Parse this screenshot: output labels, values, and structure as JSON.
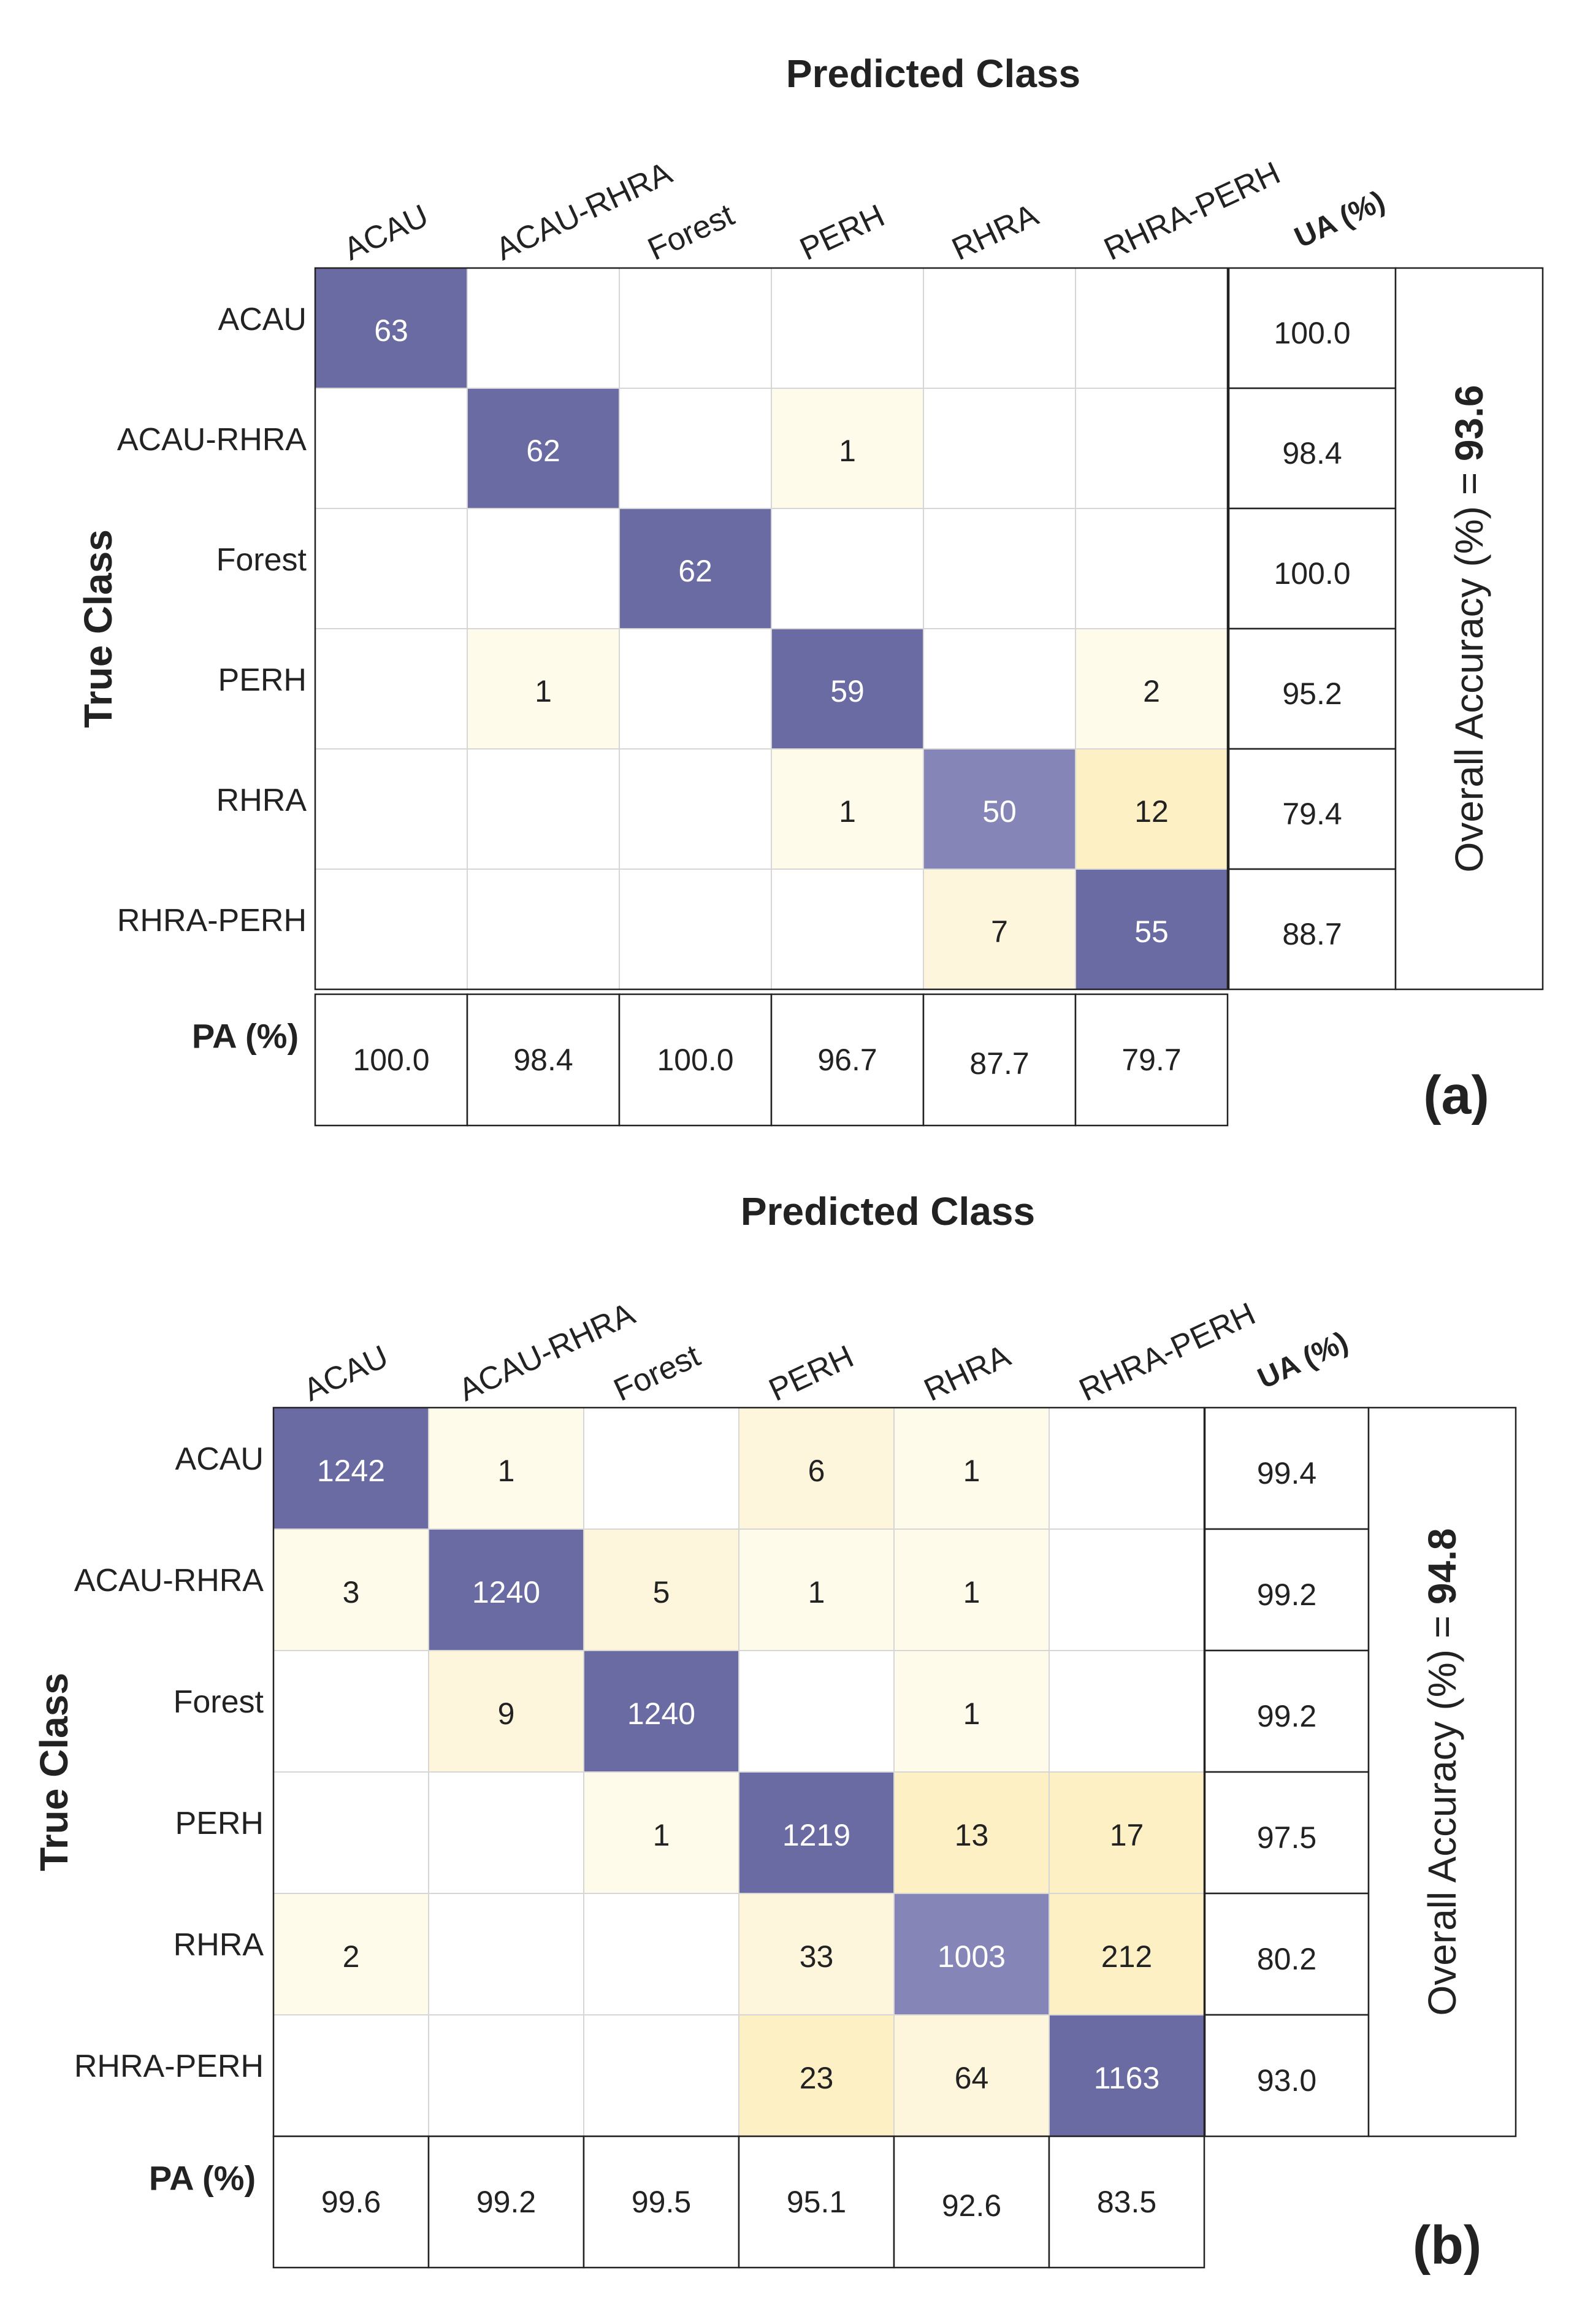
{
  "chart_data": [
    {
      "type": "heatmap",
      "panel": "(a)",
      "title": "Predicted Class",
      "ylabel": "True Class",
      "predicted_classes": [
        "ACAU",
        "ACAU-RHRA",
        "Forest",
        "PERH",
        "RHRA",
        "RHRA-PERH"
      ],
      "true_classes": [
        "ACAU",
        "ACAU-RHRA",
        "Forest",
        "PERH",
        "RHRA",
        "RHRA-PERH"
      ],
      "matrix": [
        [
          63,
          null,
          null,
          null,
          null,
          null
        ],
        [
          null,
          62,
          null,
          1,
          null,
          null
        ],
        [
          null,
          null,
          62,
          null,
          null,
          null
        ],
        [
          null,
          1,
          null,
          59,
          null,
          2
        ],
        [
          null,
          null,
          null,
          1,
          50,
          12
        ],
        [
          null,
          null,
          null,
          null,
          7,
          55
        ]
      ],
      "ua_label": "UA (%)",
      "ua": [
        "100.0",
        "98.4",
        "100.0",
        "95.2",
        "79.4",
        "88.7"
      ],
      "pa_label": "PA (%)",
      "pa": [
        "100.0",
        "98.4",
        "100.0",
        "96.7",
        "87.7",
        "79.7"
      ],
      "overall_label": "Overall Accuracy (%)",
      "overall_eq": "=",
      "overall_value": "93.6"
    },
    {
      "type": "heatmap",
      "panel": "(b)",
      "title": "Predicted Class",
      "ylabel": "True Class",
      "predicted_classes": [
        "ACAU",
        "ACAU-RHRA",
        "Forest",
        "PERH",
        "RHRA",
        "RHRA-PERH"
      ],
      "true_classes": [
        "ACAU",
        "ACAU-RHRA",
        "Forest",
        "PERH",
        "RHRA",
        "RHRA-PERH"
      ],
      "matrix": [
        [
          1242,
          1,
          null,
          6,
          1,
          null
        ],
        [
          3,
          1240,
          5,
          1,
          1,
          null
        ],
        [
          null,
          9,
          1240,
          null,
          1,
          null
        ],
        [
          null,
          null,
          1,
          1219,
          13,
          17
        ],
        [
          2,
          null,
          null,
          33,
          1003,
          212
        ],
        [
          null,
          null,
          null,
          23,
          64,
          1163
        ]
      ],
      "ua_label": "UA (%)",
      "ua": [
        "99.4",
        "99.2",
        "99.2",
        "97.5",
        "80.2",
        "93.0"
      ],
      "pa_label": "PA (%)",
      "pa": [
        "99.6",
        "99.2",
        "99.5",
        "95.1",
        "92.6",
        "83.5"
      ],
      "overall_label": "Overall Accuracy (%)",
      "overall_eq": "=",
      "overall_value": "94.8"
    }
  ]
}
